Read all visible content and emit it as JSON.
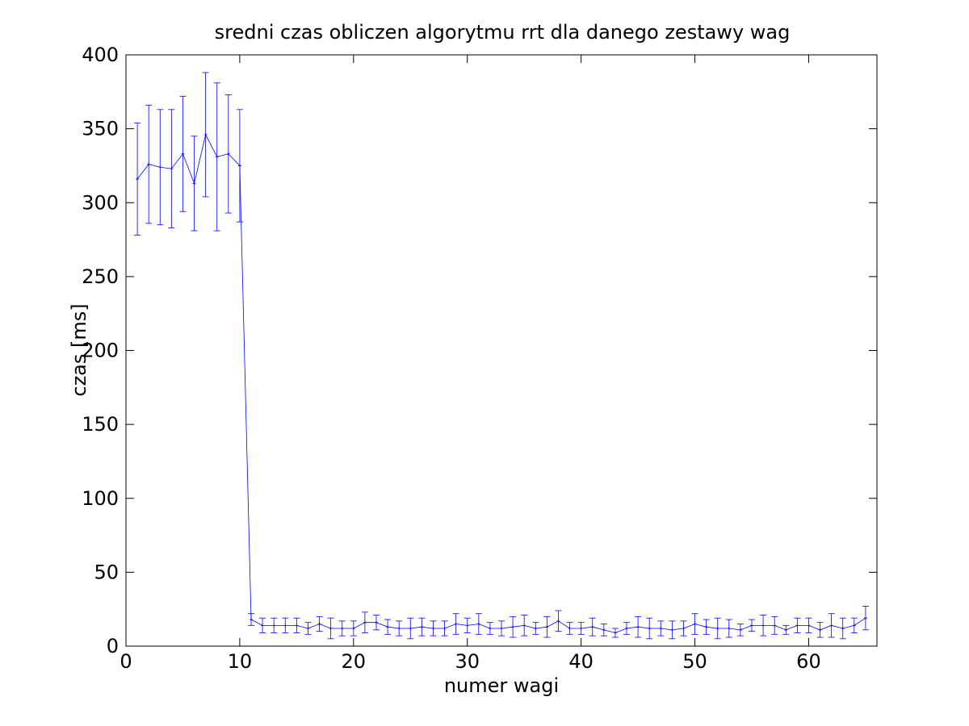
{
  "chart_data": {
    "type": "line",
    "title": "sredni czas obliczen algorytmu rrt dla danego zestawy wag",
    "xlabel": "numer wagi",
    "ylabel": "czas [ms]",
    "xlim": [
      0,
      66
    ],
    "ylim": [
      0,
      400
    ],
    "xticks": [
      0,
      10,
      20,
      30,
      40,
      50,
      60
    ],
    "yticks": [
      0,
      50,
      100,
      150,
      200,
      250,
      300,
      350,
      400
    ],
    "grid": false,
    "series_color": "#0000ff",
    "error_bars": true,
    "series": [
      {
        "x": [
          1,
          2,
          3,
          4,
          5,
          6,
          7,
          8,
          9,
          10,
          11,
          12,
          13,
          14,
          15,
          16,
          17,
          18,
          19,
          20,
          21,
          22,
          23,
          24,
          25,
          26,
          27,
          28,
          29,
          30,
          31,
          32,
          33,
          34,
          35,
          36,
          37,
          38,
          39,
          40,
          41,
          42,
          43,
          44,
          45,
          46,
          47,
          48,
          49,
          50,
          51,
          52,
          53,
          54,
          55,
          56,
          57,
          58,
          59,
          60,
          61,
          62,
          63,
          64,
          65
        ],
        "y": [
          316,
          326,
          324,
          323,
          333,
          313,
          346,
          331,
          333,
          325,
          18,
          14,
          14,
          14,
          14,
          12,
          15,
          12,
          12,
          12,
          16,
          16,
          13,
          12,
          12,
          13,
          12,
          12,
          15,
          14,
          15,
          12,
          12,
          13,
          14,
          12,
          13,
          17,
          12,
          12,
          13,
          11,
          9,
          12,
          13,
          12,
          12,
          11,
          12,
          15,
          13,
          12,
          12,
          11,
          14,
          14,
          14,
          11,
          14,
          14,
          11,
          14,
          12,
          14,
          19
        ],
        "err": [
          38,
          40,
          39,
          40,
          39,
          32,
          42,
          50,
          40,
          38,
          4,
          5,
          5,
          5,
          5,
          4,
          5,
          7,
          5,
          5,
          7,
          5,
          5,
          5,
          7,
          6,
          5,
          5,
          7,
          5,
          7,
          4,
          5,
          7,
          7,
          4,
          7,
          7,
          4,
          4,
          6,
          4,
          3,
          4,
          7,
          7,
          5,
          6,
          5,
          7,
          5,
          7,
          6,
          4,
          4,
          7,
          6,
          3,
          5,
          5,
          5,
          8,
          7,
          5,
          8
        ]
      }
    ]
  }
}
